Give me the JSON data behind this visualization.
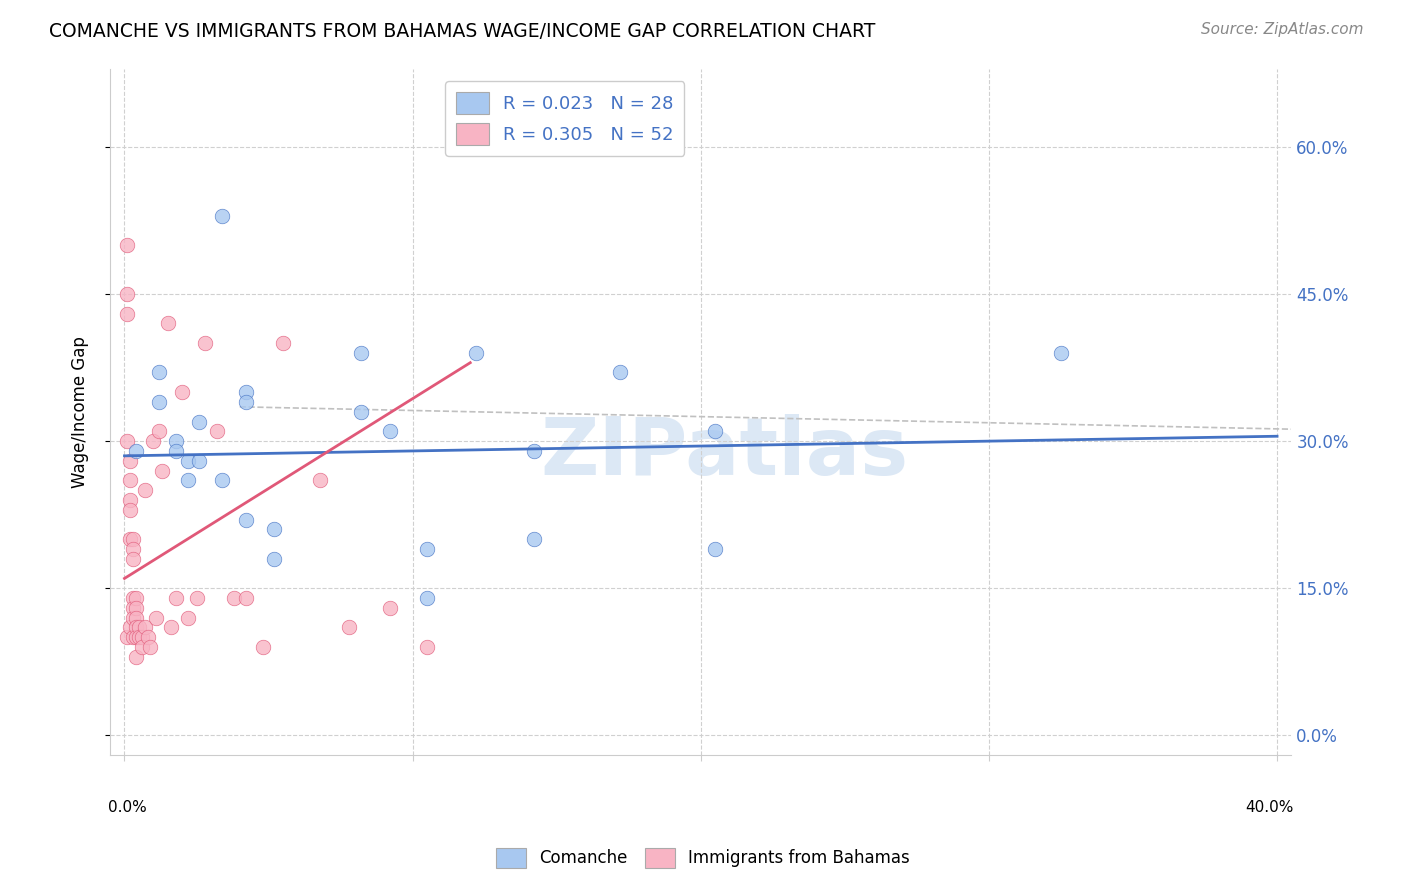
{
  "title": "COMANCHE VS IMMIGRANTS FROM BAHAMAS WAGE/INCOME GAP CORRELATION CHART",
  "source": "Source: ZipAtlas.com",
  "ylabel": "Wage/Income Gap",
  "ytick_labels": [
    "0.0%",
    "15.0%",
    "30.0%",
    "45.0%",
    "60.0%"
  ],
  "ytick_values": [
    0.0,
    0.15,
    0.3,
    0.45,
    0.6
  ],
  "xtick_vals": [
    0.0,
    0.1,
    0.2,
    0.3,
    0.4
  ],
  "xlim": [
    -0.005,
    0.405
  ],
  "ylim": [
    -0.02,
    0.68
  ],
  "legend_label1": "R = 0.023   N = 28",
  "legend_label2": "R = 0.305   N = 52",
  "legend_color1": "#a8c8f0",
  "legend_color2": "#f8b4c4",
  "line_color1": "#4472c4",
  "line_color2": "#e05878",
  "watermark": "ZIPatlas",
  "comanche_x": [
    0.004,
    0.012,
    0.012,
    0.018,
    0.018,
    0.022,
    0.022,
    0.026,
    0.026,
    0.034,
    0.034,
    0.042,
    0.042,
    0.042,
    0.052,
    0.052,
    0.082,
    0.082,
    0.092,
    0.105,
    0.105,
    0.122,
    0.142,
    0.142,
    0.172,
    0.205,
    0.205,
    0.325
  ],
  "comanche_y": [
    0.29,
    0.37,
    0.34,
    0.3,
    0.29,
    0.28,
    0.26,
    0.32,
    0.28,
    0.53,
    0.26,
    0.35,
    0.34,
    0.22,
    0.21,
    0.18,
    0.39,
    0.33,
    0.31,
    0.19,
    0.14,
    0.39,
    0.29,
    0.2,
    0.37,
    0.31,
    0.19,
    0.39
  ],
  "bahamas_x": [
    0.001,
    0.001,
    0.001,
    0.001,
    0.001,
    0.002,
    0.002,
    0.002,
    0.002,
    0.002,
    0.002,
    0.003,
    0.003,
    0.003,
    0.003,
    0.003,
    0.003,
    0.003,
    0.004,
    0.004,
    0.004,
    0.004,
    0.004,
    0.004,
    0.005,
    0.005,
    0.006,
    0.006,
    0.007,
    0.007,
    0.008,
    0.009,
    0.01,
    0.011,
    0.012,
    0.013,
    0.015,
    0.016,
    0.018,
    0.02,
    0.022,
    0.025,
    0.028,
    0.032,
    0.038,
    0.042,
    0.048,
    0.055,
    0.068,
    0.078,
    0.092,
    0.105
  ],
  "bahamas_y": [
    0.5,
    0.45,
    0.43,
    0.3,
    0.1,
    0.28,
    0.26,
    0.24,
    0.23,
    0.2,
    0.11,
    0.2,
    0.19,
    0.18,
    0.14,
    0.13,
    0.12,
    0.1,
    0.14,
    0.13,
    0.12,
    0.11,
    0.1,
    0.08,
    0.11,
    0.1,
    0.1,
    0.09,
    0.25,
    0.11,
    0.1,
    0.09,
    0.3,
    0.12,
    0.31,
    0.27,
    0.42,
    0.11,
    0.14,
    0.35,
    0.12,
    0.14,
    0.4,
    0.31,
    0.14,
    0.14,
    0.09,
    0.4,
    0.26,
    0.11,
    0.13,
    0.09
  ],
  "comanche_line": [
    0.0,
    0.4,
    0.285,
    0.305
  ],
  "bahamas_line": [
    0.0,
    0.12,
    0.16,
    0.38
  ],
  "diag_line": [
    0.04,
    0.335,
    0.6,
    0.3
  ],
  "grid_color": "#d0d0d0",
  "spine_color": "#cccccc"
}
